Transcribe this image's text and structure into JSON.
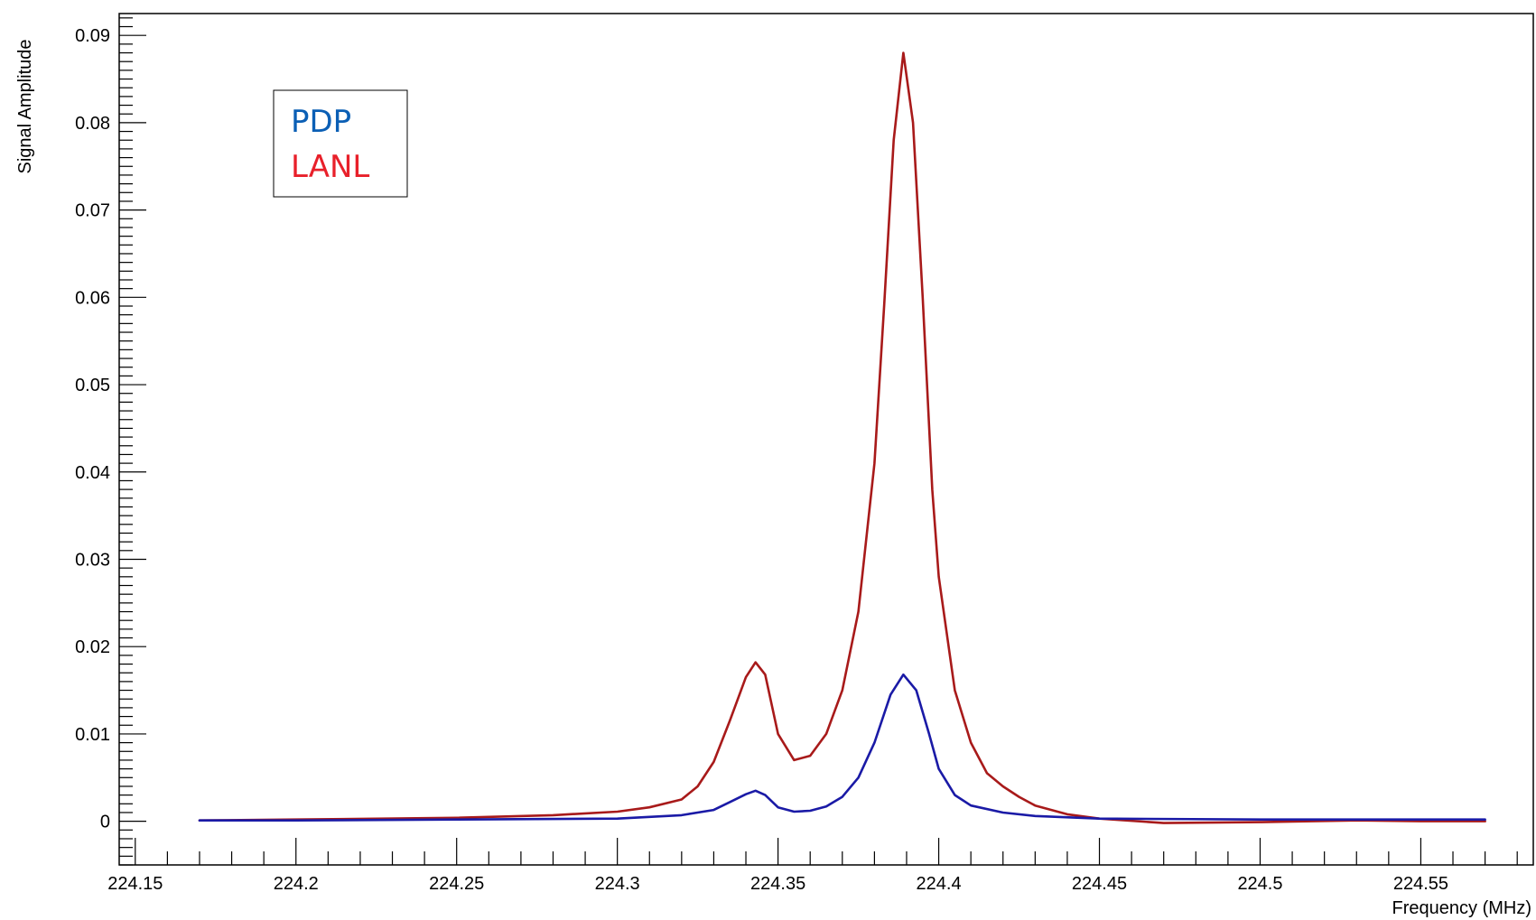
{
  "chart_data": {
    "type": "line",
    "title": "",
    "xlabel": "Frequency (MHz)",
    "ylabel": "Signal Amplitude",
    "xlim": [
      224.145,
      224.585
    ],
    "ylim": [
      -0.005,
      0.0925
    ],
    "x_ticks": [
      224.15,
      224.2,
      224.25,
      224.3,
      224.35,
      224.4,
      224.45,
      224.5,
      224.55
    ],
    "x_tick_labels": [
      "224.15",
      "224.2",
      "224.25",
      "224.3",
      "224.35",
      "224.4",
      "224.45",
      "224.5",
      "224.55"
    ],
    "y_ticks": [
      0,
      0.01,
      0.02,
      0.03,
      0.04,
      0.05,
      0.06,
      0.07,
      0.08,
      0.09
    ],
    "y_tick_labels": [
      "0",
      "0.01",
      "0.02",
      "0.03",
      "0.04",
      "0.05",
      "0.06",
      "0.07",
      "0.08",
      "0.09"
    ],
    "grid": false,
    "legend_position": "top-left",
    "series": [
      {
        "name": "PDP",
        "color": "#0b5fb5",
        "line_color": "#1a1aa6",
        "x": [
          224.17,
          224.2,
          224.25,
          224.3,
          224.32,
          224.33,
          224.335,
          224.34,
          224.343,
          224.346,
          224.35,
          224.355,
          224.36,
          224.365,
          224.37,
          224.375,
          224.38,
          224.385,
          224.389,
          224.393,
          224.397,
          224.4,
          224.405,
          224.41,
          224.42,
          224.43,
          224.45,
          224.5,
          224.55,
          224.57
        ],
        "y": [
          0.0001,
          0.0001,
          0.0002,
          0.0003,
          0.0007,
          0.0013,
          0.0022,
          0.0031,
          0.0035,
          0.003,
          0.0016,
          0.0011,
          0.0012,
          0.0017,
          0.0028,
          0.005,
          0.009,
          0.0145,
          0.0168,
          0.015,
          0.01,
          0.006,
          0.003,
          0.0018,
          0.001,
          0.0006,
          0.0003,
          0.0002,
          0.0002,
          0.0002
        ]
      },
      {
        "name": "LANL",
        "color": "#e8202a",
        "line_color": "#a81a1a",
        "x": [
          224.17,
          224.2,
          224.25,
          224.28,
          224.3,
          224.31,
          224.32,
          224.325,
          224.33,
          224.335,
          224.34,
          224.343,
          224.346,
          224.35,
          224.355,
          224.36,
          224.365,
          224.37,
          224.375,
          224.38,
          224.383,
          224.386,
          224.389,
          224.392,
          224.395,
          224.398,
          224.4,
          224.405,
          224.41,
          224.415,
          224.42,
          224.425,
          224.43,
          224.44,
          224.45,
          224.47,
          224.5,
          224.53,
          224.55,
          224.57
        ],
        "y": [
          0.0001,
          0.0002,
          0.0004,
          0.0007,
          0.0011,
          0.0016,
          0.0025,
          0.004,
          0.0068,
          0.0115,
          0.0165,
          0.0182,
          0.0168,
          0.01,
          0.007,
          0.0075,
          0.01,
          0.015,
          0.024,
          0.041,
          0.059,
          0.078,
          0.088,
          0.08,
          0.06,
          0.038,
          0.028,
          0.015,
          0.009,
          0.0055,
          0.004,
          0.0028,
          0.0018,
          0.0008,
          0.0003,
          -0.0002,
          -0.0001,
          0.0001,
          0.0,
          0.0
        ]
      }
    ]
  }
}
